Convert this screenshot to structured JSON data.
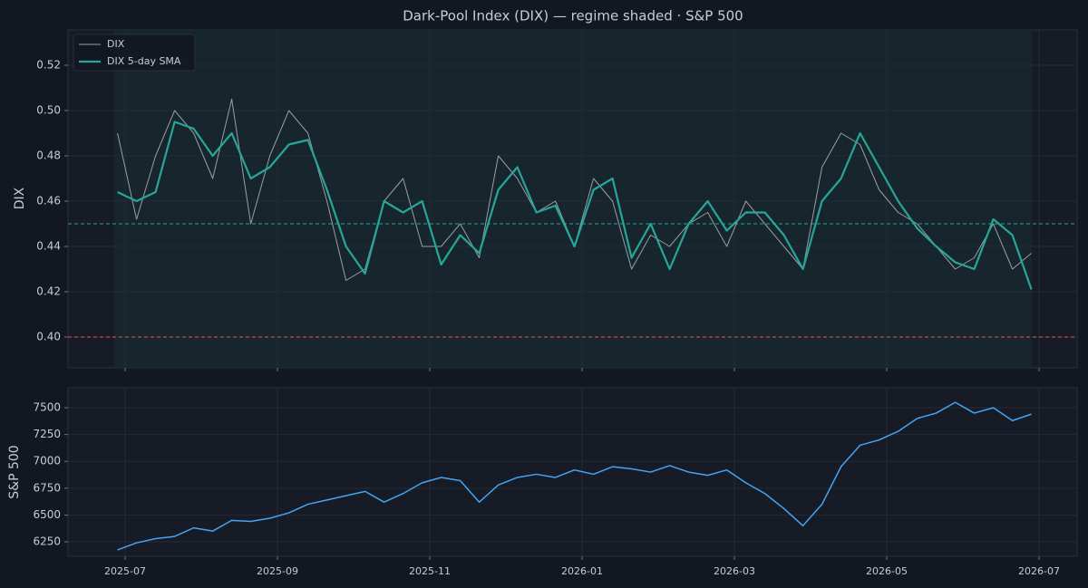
{
  "chart_data": [
    {
      "type": "line",
      "title": "Dark-Pool Index (DIX) — regime shaded · S&P 500",
      "ylabel": "DIX",
      "x": [
        -0.1,
        0.15,
        0.4,
        0.65,
        0.9,
        1.15,
        1.4,
        1.65,
        1.9,
        2.15,
        2.4,
        2.65,
        2.9,
        3.15,
        3.4,
        3.65,
        3.9,
        4.15,
        4.4,
        4.65,
        4.9,
        5.15,
        5.4,
        5.65,
        5.9,
        6.15,
        6.4,
        6.65,
        6.9,
        7.15,
        7.4,
        7.65,
        7.9,
        8.15,
        8.4,
        8.65,
        8.9,
        9.15,
        9.4,
        9.65,
        9.9,
        10.15,
        10.4,
        10.65,
        10.9,
        11.15,
        11.4,
        11.65,
        11.9
      ],
      "series": [
        {
          "name": "DIX",
          "color": "#9a9ea5",
          "width": 1,
          "values": [
            0.49,
            0.452,
            0.48,
            0.5,
            0.49,
            0.47,
            0.505,
            0.45,
            0.48,
            0.5,
            0.49,
            0.46,
            0.425,
            0.43,
            0.46,
            0.47,
            0.44,
            0.44,
            0.45,
            0.435,
            0.48,
            0.47,
            0.455,
            0.46,
            0.44,
            0.47,
            0.46,
            0.43,
            0.445,
            0.44,
            0.45,
            0.455,
            0.44,
            0.46,
            0.45,
            0.44,
            0.43,
            0.475,
            0.49,
            0.485,
            0.465,
            0.455,
            0.45,
            0.44,
            0.43,
            0.435,
            0.45,
            0.43,
            0.437
          ]
        },
        {
          "name": "DIX 5-day SMA",
          "color": "#26a69a",
          "width": 2.2,
          "values": [
            0.464,
            0.46,
            0.464,
            0.495,
            0.492,
            0.48,
            0.49,
            0.47,
            0.475,
            0.485,
            0.487,
            0.465,
            0.44,
            0.428,
            0.46,
            0.455,
            0.46,
            0.432,
            0.445,
            0.437,
            0.465,
            0.475,
            0.455,
            0.458,
            0.44,
            0.465,
            0.47,
            0.435,
            0.45,
            0.43,
            0.45,
            0.46,
            0.447,
            0.455,
            0.455,
            0.445,
            0.43,
            0.46,
            0.47,
            0.49,
            0.475,
            0.46,
            0.448,
            0.44,
            0.433,
            0.43,
            0.452,
            0.445,
            0.421
          ]
        }
      ],
      "hlines": [
        {
          "value": 0.45,
          "color": "#26a69a"
        },
        {
          "value": 0.4,
          "color": "#ef5350"
        }
      ],
      "ylim": [
        0.3864,
        0.5356
      ],
      "yticks": [
        {
          "value": 0.4,
          "label": "0.40"
        },
        0.42,
        0.44,
        0.46,
        0.48,
        {
          "value": 0.5,
          "label": "0.50"
        },
        0.52
      ],
      "xlim": [
        -0.75,
        12.5
      ],
      "grid": true,
      "legend": "top-left"
    },
    {
      "type": "line",
      "ylabel": "S&P 500",
      "color": "#42a5f5",
      "x": [
        -0.1,
        0.15,
        0.4,
        0.65,
        0.9,
        1.15,
        1.4,
        1.65,
        1.9,
        2.15,
        2.4,
        2.65,
        2.9,
        3.15,
        3.4,
        3.65,
        3.9,
        4.15,
        4.4,
        4.65,
        4.9,
        5.15,
        5.4,
        5.65,
        5.9,
        6.15,
        6.4,
        6.65,
        6.9,
        7.15,
        7.4,
        7.65,
        7.9,
        8.15,
        8.4,
        8.65,
        8.9,
        9.15,
        9.4,
        9.65,
        9.9,
        10.15,
        10.4,
        10.65,
        10.9,
        11.15,
        11.4,
        11.65,
        11.9
      ],
      "values": [
        6175,
        6240,
        6280,
        6300,
        6380,
        6350,
        6450,
        6440,
        6470,
        6520,
        6600,
        6640,
        6680,
        6720,
        6620,
        6700,
        6800,
        6850,
        6820,
        6620,
        6780,
        6850,
        6880,
        6850,
        6920,
        6880,
        6950,
        6930,
        6900,
        6960,
        6900,
        6870,
        6920,
        6800,
        6700,
        6560,
        6400,
        6600,
        6950,
        7150,
        7200,
        7280,
        7400,
        7450,
        7550,
        7450,
        7500,
        7380,
        7440
      ],
      "ylim": [
        6115,
        7686
      ],
      "yticks": [
        6250,
        6500,
        6750,
        7000,
        7250,
        7500
      ],
      "xlim": [
        -0.75,
        12.5
      ],
      "xticks": [
        {
          "value": 0,
          "label": "2025-07"
        },
        {
          "value": 2,
          "label": "2025-09"
        },
        {
          "value": 4,
          "label": "2025-11"
        },
        {
          "value": 6,
          "label": "2026-01"
        },
        {
          "value": 8,
          "label": "2026-03"
        },
        {
          "value": 10,
          "label": "2026-05"
        },
        {
          "value": 12,
          "label": "2026-07"
        }
      ],
      "grid": true
    }
  ]
}
